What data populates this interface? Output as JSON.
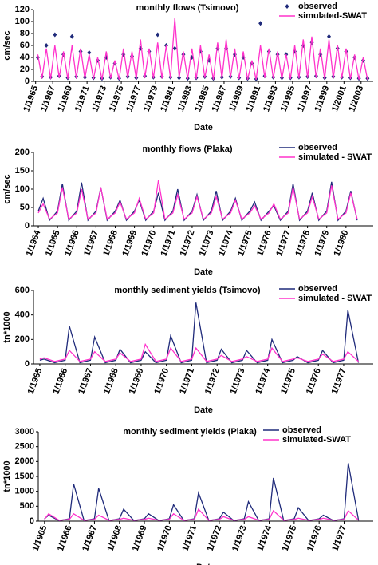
{
  "chart_data": [
    {
      "type": "line",
      "title": "monthly flows (Tsimovo)",
      "x_label": "Date",
      "y_label": "cm/sec",
      "x": [
        "1965-04",
        "1965-10",
        "1966-04",
        "1966-10",
        "1967-04",
        "1967-10",
        "1968-04",
        "1968-10",
        "1969-04",
        "1969-10",
        "1970-04",
        "1970-10",
        "1971-04",
        "1971-10",
        "1972-04",
        "1972-10",
        "1973-04",
        "1973-10",
        "1974-04",
        "1974-10",
        "1975-04",
        "1975-10",
        "1976-04",
        "1976-10",
        "1977-04",
        "1977-10",
        "1978-04",
        "1978-10",
        "1979-04",
        "1979-10",
        "1980-04",
        "1980-10",
        "1981-04",
        "1981-10",
        "1982-04",
        "1982-10",
        "1983-04",
        "1983-10",
        "1984-04",
        "1984-10",
        "1985-04",
        "1985-10",
        "1986-04",
        "1986-10",
        "1987-04",
        "1987-10",
        "1988-04",
        "1988-10",
        "1989-04",
        "1989-10",
        "1990-04",
        "1990-10",
        "1991-04",
        "1991-10",
        "1992-04",
        "1992-10",
        "1993-04",
        "1993-10",
        "1994-04",
        "1994-10",
        "1995-04",
        "1995-10",
        "1996-04",
        "1996-10",
        "1997-04",
        "1997-10",
        "1998-04",
        "1998-10",
        "1999-04",
        "1999-10",
        "2000-04",
        "2000-10",
        "2001-04",
        "2001-10",
        "2002-04",
        "2002-10",
        "2003-04",
        "2003-10"
      ],
      "series": [
        {
          "name": "observed",
          "color": "#1f2a7a",
          "marker": "diamond",
          "values": [
            40,
            8,
            60,
            7,
            78,
            9,
            45,
            6,
            75,
            8,
            50,
            7,
            48,
            6,
            35,
            5,
            40,
            7,
            30,
            5,
            45,
            8,
            42,
            6,
            55,
            9,
            50,
            7,
            78,
            8,
            60,
            7,
            55,
            6,
            45,
            5,
            40,
            6,
            50,
            8,
            35,
            5,
            55,
            7,
            55,
            8,
            45,
            6,
            40,
            5,
            30,
            4,
            97,
            9,
            50,
            7,
            45,
            6,
            45,
            6,
            50,
            7,
            60,
            8,
            65,
            9,
            45,
            6,
            75,
            8,
            55,
            7,
            50,
            6,
            40,
            5,
            35,
            5
          ]
        },
        {
          "name": "simulated-SWAT",
          "color": "#ff33cc",
          "values": [
            45,
            5,
            55,
            4,
            60,
            6,
            50,
            4,
            60,
            5,
            55,
            5,
            45,
            4,
            40,
            3,
            50,
            5,
            35,
            3,
            55,
            6,
            50,
            4,
            70,
            6,
            55,
            5,
            65,
            5,
            60,
            5,
            106,
            6,
            50,
            4,
            55,
            4,
            60,
            6,
            45,
            3,
            65,
            5,
            70,
            6,
            55,
            4,
            50,
            3,
            35,
            3,
            60,
            6,
            55,
            5,
            50,
            4,
            45,
            4,
            60,
            5,
            70,
            6,
            75,
            6,
            55,
            4,
            70,
            5,
            60,
            5,
            55,
            4,
            45,
            3,
            40,
            3
          ]
        }
      ],
      "xlim": [
        "1964-10",
        "2004-06"
      ],
      "ylim": [
        0,
        120
      ],
      "yticks": [
        0,
        20,
        40,
        60,
        80,
        100,
        120
      ],
      "xticks": [
        {
          "value": "1965-01",
          "label": "1/1965"
        },
        {
          "value": "1967-01",
          "label": "1/1967"
        },
        {
          "value": "1969-01",
          "label": "1/1969"
        },
        {
          "value": "1971-01",
          "label": "1/1971"
        },
        {
          "value": "1973-01",
          "label": "1/1973"
        },
        {
          "value": "1975-01",
          "label": "1/1975"
        },
        {
          "value": "1977-01",
          "label": "1/1977"
        },
        {
          "value": "1979-01",
          "label": "1/1979"
        },
        {
          "value": "1981-01",
          "label": "1/1981"
        },
        {
          "value": "1983-01",
          "label": "1/1983"
        },
        {
          "value": "1985-01",
          "label": "1/1985"
        },
        {
          "value": "1987-01",
          "label": "1/1987"
        },
        {
          "value": "1989-01",
          "label": "1/1989"
        },
        {
          "value": "1991-01",
          "label": "1/1991"
        },
        {
          "value": "1993-01",
          "label": "1/1993"
        },
        {
          "value": "1995-01",
          "label": "1/1995"
        },
        {
          "value": "1997-01",
          "label": "1/1997"
        },
        {
          "value": "1999-01",
          "label": "1/1999"
        },
        {
          "value": "2001-01",
          "label": "1/2001"
        },
        {
          "value": "2003-01",
          "label": "1/2003"
        }
      ]
    },
    {
      "type": "line",
      "title": "monthly flows (Plaka)",
      "x_label": "Date",
      "y_label": "cm/sec",
      "x": [
        "1964-01",
        "1964-04",
        "1964-08",
        "1965-01",
        "1965-04",
        "1965-08",
        "1966-01",
        "1966-04",
        "1966-08",
        "1967-01",
        "1967-04",
        "1967-08",
        "1968-01",
        "1968-04",
        "1968-08",
        "1969-01",
        "1969-04",
        "1969-08",
        "1970-01",
        "1970-04",
        "1970-08",
        "1971-01",
        "1971-04",
        "1971-08",
        "1972-01",
        "1972-04",
        "1972-08",
        "1973-01",
        "1973-04",
        "1973-08",
        "1974-01",
        "1974-04",
        "1974-08",
        "1975-01",
        "1975-04",
        "1975-08",
        "1976-01",
        "1976-04",
        "1976-08",
        "1977-01",
        "1977-04",
        "1977-08",
        "1978-01",
        "1978-04",
        "1978-08",
        "1979-01",
        "1979-04",
        "1979-08",
        "1980-01",
        "1980-04",
        "1980-08"
      ],
      "series": [
        {
          "name": "observed",
          "color": "#1f2a7a",
          "values": [
            40,
            75,
            15,
            40,
            115,
            15,
            40,
            118,
            15,
            40,
            105,
            15,
            40,
            70,
            15,
            40,
            70,
            15,
            40,
            90,
            15,
            40,
            100,
            15,
            40,
            85,
            15,
            40,
            95,
            15,
            40,
            75,
            15,
            40,
            65,
            15,
            40,
            55,
            15,
            40,
            115,
            15,
            40,
            90,
            15,
            40,
            120,
            15,
            40,
            95,
            15
          ]
        },
        {
          "name": "simulated - SWAT",
          "color": "#ff33cc",
          "values": [
            35,
            60,
            18,
            35,
            105,
            18,
            35,
            100,
            18,
            35,
            105,
            18,
            35,
            65,
            18,
            35,
            75,
            18,
            35,
            125,
            18,
            35,
            85,
            18,
            35,
            80,
            18,
            35,
            80,
            18,
            35,
            70,
            18,
            35,
            55,
            18,
            35,
            60,
            18,
            35,
            105,
            18,
            35,
            80,
            18,
            35,
            110,
            18,
            35,
            90,
            18
          ]
        }
      ],
      "xlim": [
        "1963-10",
        "1981-06"
      ],
      "ylim": [
        0,
        200
      ],
      "yticks": [
        0,
        50,
        100,
        150,
        200
      ],
      "xticks": [
        {
          "value": "1964-01",
          "label": "1/1964"
        },
        {
          "value": "1965-01",
          "label": "1/1965"
        },
        {
          "value": "1966-01",
          "label": "1/1966"
        },
        {
          "value": "1967-01",
          "label": "1/1967"
        },
        {
          "value": "1968-01",
          "label": "1/1968"
        },
        {
          "value": "1969-01",
          "label": "1/1969"
        },
        {
          "value": "1970-01",
          "label": "1/1970"
        },
        {
          "value": "1971-01",
          "label": "1/1971"
        },
        {
          "value": "1972-01",
          "label": "1/1972"
        },
        {
          "value": "1973-01",
          "label": "1/1973"
        },
        {
          "value": "1974-01",
          "label": "1/1974"
        },
        {
          "value": "1975-01",
          "label": "1/1975"
        },
        {
          "value": "1976-01",
          "label": "1/1976"
        },
        {
          "value": "1977-01",
          "label": "1/1977"
        },
        {
          "value": "1978-01",
          "label": "1/1978"
        },
        {
          "value": "1979-01",
          "label": "1/1979"
        },
        {
          "value": "1980-01",
          "label": "1/1980"
        }
      ]
    },
    {
      "type": "line",
      "title": "monthly sediment yields (Tsimovo)",
      "x_label": "Date",
      "y_label": "tn*1000",
      "x": [
        "1965-01",
        "1965-03",
        "1965-08",
        "1966-01",
        "1966-03",
        "1966-08",
        "1967-01",
        "1967-03",
        "1967-08",
        "1968-01",
        "1968-03",
        "1968-08",
        "1969-01",
        "1969-03",
        "1969-08",
        "1970-01",
        "1970-03",
        "1970-08",
        "1971-01",
        "1971-03",
        "1971-08",
        "1972-01",
        "1972-03",
        "1972-08",
        "1973-01",
        "1973-03",
        "1973-08",
        "1974-01",
        "1974-03",
        "1974-08",
        "1975-01",
        "1975-03",
        "1975-08",
        "1976-01",
        "1976-03",
        "1976-08",
        "1977-01",
        "1977-03",
        "1977-08"
      ],
      "series": [
        {
          "name": "observed",
          "color": "#1f2a7a",
          "values": [
            30,
            40,
            10,
            30,
            310,
            10,
            30,
            220,
            10,
            30,
            120,
            10,
            30,
            100,
            10,
            30,
            230,
            10,
            30,
            500,
            10,
            30,
            120,
            10,
            30,
            110,
            10,
            30,
            200,
            10,
            30,
            60,
            10,
            30,
            110,
            10,
            30,
            440,
            10
          ]
        },
        {
          "name": "simulated - SWAT",
          "color": "#ff33cc",
          "values": [
            40,
            50,
            20,
            40,
            110,
            20,
            40,
            100,
            20,
            40,
            90,
            20,
            40,
            160,
            20,
            40,
            130,
            20,
            40,
            130,
            20,
            40,
            70,
            20,
            40,
            60,
            20,
            40,
            130,
            20,
            40,
            50,
            20,
            40,
            80,
            20,
            40,
            100,
            20
          ]
        }
      ],
      "xlim": [
        "1964-10",
        "1978-03"
      ],
      "ylim": [
        0,
        600
      ],
      "yticks": [
        0,
        200,
        400,
        600
      ],
      "xticks": [
        {
          "value": "1965-01",
          "label": "1/1965"
        },
        {
          "value": "1966-01",
          "label": "1/1966"
        },
        {
          "value": "1967-01",
          "label": "1/1967"
        },
        {
          "value": "1968-01",
          "label": "1/1968"
        },
        {
          "value": "1969-01",
          "label": "1/1969"
        },
        {
          "value": "1970-01",
          "label": "1/1970"
        },
        {
          "value": "1971-01",
          "label": "1/1971"
        },
        {
          "value": "1972-01",
          "label": "1/1972"
        },
        {
          "value": "1973-01",
          "label": "1/1973"
        },
        {
          "value": "1974-01",
          "label": "1/1974"
        },
        {
          "value": "1975-01",
          "label": "1/1975"
        },
        {
          "value": "1976-01",
          "label": "1/1976"
        },
        {
          "value": "1977-01",
          "label": "1/1977"
        }
      ]
    },
    {
      "type": "line",
      "title": "monthly sediment yields (Plaka)",
      "x_label": "Date",
      "y_label": "tn*1000",
      "x": [
        "1965-01",
        "1965-03",
        "1965-08",
        "1966-01",
        "1966-03",
        "1966-08",
        "1967-01",
        "1967-03",
        "1967-08",
        "1968-01",
        "1968-03",
        "1968-08",
        "1969-01",
        "1969-03",
        "1969-08",
        "1970-01",
        "1970-03",
        "1970-08",
        "1971-01",
        "1971-03",
        "1971-08",
        "1972-01",
        "1972-03",
        "1972-08",
        "1973-01",
        "1973-03",
        "1973-08",
        "1974-01",
        "1974-03",
        "1974-08",
        "1975-01",
        "1975-03",
        "1975-08",
        "1976-01",
        "1976-03",
        "1976-08",
        "1977-01",
        "1977-03",
        "1977-08"
      ],
      "series": [
        {
          "name": "observed",
          "color": "#1f2a7a",
          "values": [
            80,
            200,
            20,
            80,
            1250,
            20,
            80,
            1100,
            20,
            80,
            400,
            20,
            80,
            250,
            20,
            80,
            550,
            20,
            80,
            950,
            20,
            80,
            300,
            20,
            80,
            650,
            20,
            80,
            1450,
            20,
            80,
            450,
            20,
            80,
            200,
            20,
            80,
            1950,
            20
          ]
        },
        {
          "name": "simulated-SWAT",
          "color": "#ff33cc",
          "values": [
            60,
            250,
            30,
            60,
            250,
            30,
            60,
            200,
            30,
            60,
            100,
            30,
            60,
            100,
            30,
            60,
            250,
            30,
            60,
            400,
            30,
            60,
            150,
            30,
            60,
            150,
            30,
            60,
            350,
            30,
            60,
            100,
            30,
            60,
            100,
            30,
            60,
            350,
            30
          ]
        }
      ],
      "xlim": [
        "1964-10",
        "1978-03"
      ],
      "ylim": [
        0,
        3000
      ],
      "yticks": [
        0,
        500,
        1000,
        1500,
        2000,
        2500,
        3000
      ],
      "xticks": [
        {
          "value": "1965-01",
          "label": "1/1965"
        },
        {
          "value": "1966-01",
          "label": "1/1966"
        },
        {
          "value": "1967-01",
          "label": "1/1967"
        },
        {
          "value": "1968-01",
          "label": "1/1968"
        },
        {
          "value": "1969-01",
          "label": "1/1969"
        },
        {
          "value": "1970-01",
          "label": "1/1970"
        },
        {
          "value": "1971-01",
          "label": "1/1971"
        },
        {
          "value": "1972-01",
          "label": "1/1972"
        },
        {
          "value": "1973-01",
          "label": "1/1973"
        },
        {
          "value": "1974-01",
          "label": "1/1974"
        },
        {
          "value": "1975-01",
          "label": "1/1975"
        },
        {
          "value": "1976-01",
          "label": "1/1976"
        },
        {
          "value": "1977-01",
          "label": "1/1977"
        }
      ]
    }
  ]
}
